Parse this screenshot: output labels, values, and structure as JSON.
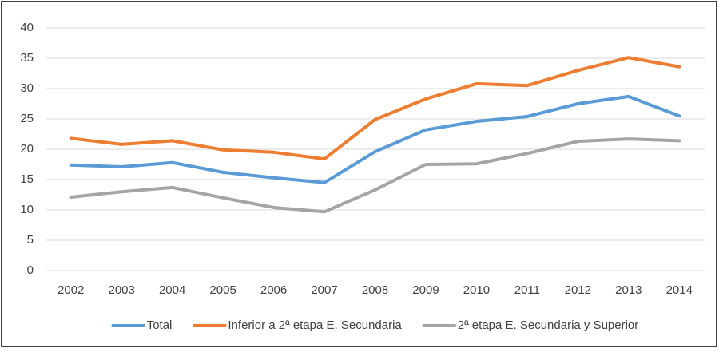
{
  "chart_data": {
    "type": "line",
    "categories": [
      "2002",
      "2003",
      "2004",
      "2005",
      "2006",
      "2007",
      "2008",
      "2009",
      "2010",
      "2011",
      "2012",
      "2013",
      "2014"
    ],
    "series": [
      {
        "name": "Total",
        "color": "#5b9bd5",
        "values": [
          17.4,
          17.1,
          17.8,
          16.2,
          15.3,
          14.5,
          19.6,
          23.2,
          24.6,
          25.4,
          27.5,
          28.7,
          25.5
        ]
      },
      {
        "name": "Inferior a 2ª etapa E. Secundaria",
        "color": "#ed7d31",
        "values": [
          21.8,
          20.8,
          21.4,
          19.9,
          19.5,
          18.4,
          24.9,
          28.3,
          30.8,
          30.5,
          33.0,
          35.1,
          33.6
        ]
      },
      {
        "name": "2ª etapa E. Secundaria y Superior",
        "color": "#a5a5a5",
        "values": [
          12.1,
          13.0,
          13.7,
          12.0,
          10.4,
          9.7,
          13.3,
          17.5,
          17.6,
          19.3,
          21.3,
          21.7,
          21.4
        ]
      }
    ],
    "ylim": [
      0,
      40
    ],
    "yticks": [
      0,
      5,
      10,
      15,
      20,
      25,
      30,
      35,
      40
    ],
    "grid": true,
    "legend": "bottom"
  }
}
